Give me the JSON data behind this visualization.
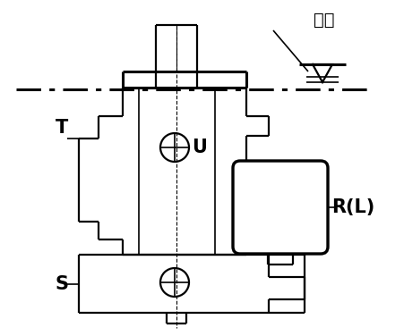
{
  "bg_color": "#ffffff",
  "line_color": "#000000",
  "label_T": "T",
  "label_U": "U",
  "label_S": "S",
  "label_RL": "R(L)",
  "label_oil": "油液",
  "figsize": [
    4.52,
    3.76
  ],
  "dpi": 100
}
